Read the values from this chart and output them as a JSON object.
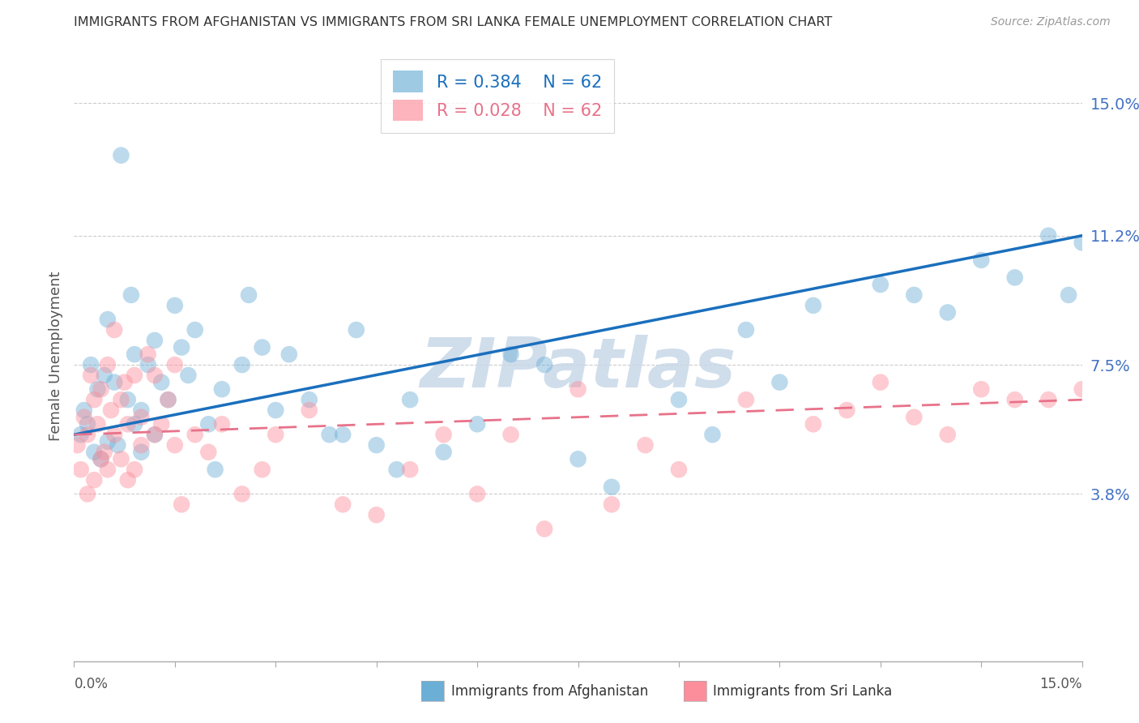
{
  "title": "IMMIGRANTS FROM AFGHANISTAN VS IMMIGRANTS FROM SRI LANKA FEMALE UNEMPLOYMENT CORRELATION CHART",
  "source": "Source: ZipAtlas.com",
  "ylabel": "Female Unemployment",
  "ytick_values": [
    3.8,
    7.5,
    11.2,
    15.0
  ],
  "xlim": [
    0,
    15
  ],
  "ylim": [
    -1.0,
    16.5
  ],
  "legend_r1": "R = 0.384",
  "legend_n1": "N = 62",
  "legend_r2": "R = 0.028",
  "legend_n2": "N = 62",
  "color_afghanistan": "#6baed6",
  "color_srilanka": "#fc8d9a",
  "color_reg_afghanistan": "#1a6fbd",
  "color_reg_srilanka": "#e8728a",
  "color_watermark": "#c8d8e8",
  "color_ytick": "#4472c4",
  "watermark": "ZIPatlas",
  "afghanistan_x": [
    0.1,
    0.15,
    0.2,
    0.25,
    0.3,
    0.35,
    0.4,
    0.45,
    0.5,
    0.5,
    0.6,
    0.65,
    0.7,
    0.8,
    0.85,
    0.9,
    0.9,
    1.0,
    1.0,
    1.1,
    1.2,
    1.2,
    1.3,
    1.4,
    1.5,
    1.6,
    1.7,
    1.8,
    2.0,
    2.1,
    2.2,
    2.5,
    2.6,
    2.8,
    3.0,
    3.2,
    3.5,
    3.8,
    4.0,
    4.2,
    4.5,
    4.8,
    5.0,
    5.5,
    6.0,
    6.5,
    7.0,
    7.5,
    8.0,
    9.0,
    9.5,
    10.0,
    10.5,
    11.0,
    12.0,
    12.5,
    13.0,
    13.5,
    14.0,
    14.5,
    14.8,
    15.0
  ],
  "afghanistan_y": [
    5.5,
    6.2,
    5.8,
    7.5,
    5.0,
    6.8,
    4.8,
    7.2,
    5.3,
    8.8,
    7.0,
    5.2,
    13.5,
    6.5,
    9.5,
    5.8,
    7.8,
    6.2,
    5.0,
    7.5,
    5.5,
    8.2,
    7.0,
    6.5,
    9.2,
    8.0,
    7.2,
    8.5,
    5.8,
    4.5,
    6.8,
    7.5,
    9.5,
    8.0,
    6.2,
    7.8,
    6.5,
    5.5,
    5.5,
    8.5,
    5.2,
    4.5,
    6.5,
    5.0,
    5.8,
    7.8,
    7.5,
    4.8,
    4.0,
    6.5,
    5.5,
    8.5,
    7.0,
    9.2,
    9.8,
    9.5,
    9.0,
    10.5,
    10.0,
    11.2,
    9.5,
    11.0
  ],
  "srilanka_x": [
    0.05,
    0.1,
    0.15,
    0.2,
    0.2,
    0.25,
    0.3,
    0.3,
    0.35,
    0.4,
    0.4,
    0.45,
    0.5,
    0.5,
    0.55,
    0.6,
    0.6,
    0.7,
    0.7,
    0.75,
    0.8,
    0.8,
    0.9,
    0.9,
    1.0,
    1.0,
    1.1,
    1.2,
    1.2,
    1.3,
    1.4,
    1.5,
    1.5,
    1.6,
    1.8,
    2.0,
    2.2,
    2.5,
    2.8,
    3.0,
    3.5,
    4.0,
    4.5,
    5.0,
    5.5,
    6.0,
    6.5,
    7.0,
    7.5,
    8.0,
    8.5,
    9.0,
    10.0,
    11.0,
    11.5,
    12.0,
    12.5,
    13.0,
    13.5,
    14.0,
    14.5,
    15.0
  ],
  "srilanka_y": [
    5.2,
    4.5,
    6.0,
    5.5,
    3.8,
    7.2,
    4.2,
    6.5,
    5.8,
    4.8,
    6.8,
    5.0,
    7.5,
    4.5,
    6.2,
    5.5,
    8.5,
    4.8,
    6.5,
    7.0,
    4.2,
    5.8,
    7.2,
    4.5,
    5.2,
    6.0,
    7.8,
    5.5,
    7.2,
    5.8,
    6.5,
    5.2,
    7.5,
    3.5,
    5.5,
    5.0,
    5.8,
    3.8,
    4.5,
    5.5,
    6.2,
    3.5,
    3.2,
    4.5,
    5.5,
    3.8,
    5.5,
    2.8,
    6.8,
    3.5,
    5.2,
    4.5,
    6.5,
    5.8,
    6.2,
    7.0,
    6.0,
    5.5,
    6.8,
    6.5,
    6.5,
    6.8
  ],
  "reg_afg_x0": 0,
  "reg_afg_x1": 15,
  "reg_afg_y0": 5.5,
  "reg_afg_y1": 11.2,
  "reg_slk_x0": 0,
  "reg_slk_x1": 15,
  "reg_slk_y0": 5.5,
  "reg_slk_y1": 6.5
}
